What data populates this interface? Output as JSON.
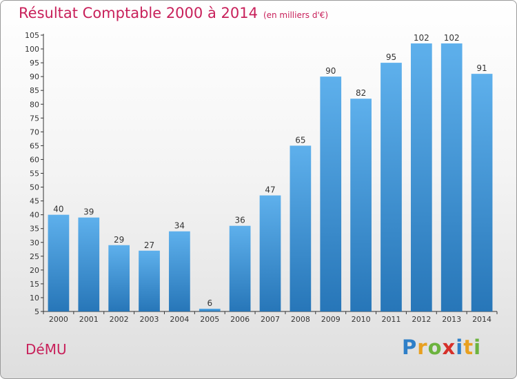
{
  "header": {
    "title": "Résultat Comptable 2000 à 2014",
    "unit": "(en milliers d'€)"
  },
  "commune": "DéMU",
  "logo": {
    "text": "Proxiti",
    "letters": [
      {
        "ch": "P",
        "color": "#2e7fc8"
      },
      {
        "ch": "r",
        "color": "#e8a020"
      },
      {
        "ch": "o",
        "color": "#6cb33e"
      },
      {
        "ch": "x",
        "color": "#d6302a"
      },
      {
        "ch": "i",
        "color": "#2e7fc8"
      },
      {
        "ch": "t",
        "color": "#e8a020"
      },
      {
        "ch": "i",
        "color": "#6cb33e"
      }
    ]
  },
  "colors": {
    "bar_light": "#5eb0ec",
    "bar_dark": "#2776b8",
    "title": "#c8205a"
  },
  "chart_data": {
    "type": "bar",
    "title": "Résultat Comptable 2000 à 2014",
    "subtitle": "(en milliers d'€)",
    "categories": [
      "2000",
      "2001",
      "2002",
      "2003",
      "2004",
      "2005",
      "2006",
      "2007",
      "2008",
      "2009",
      "2010",
      "2011",
      "2012",
      "2013",
      "2014"
    ],
    "values": [
      40,
      39,
      29,
      27,
      34,
      6,
      36,
      47,
      65,
      90,
      82,
      95,
      102,
      102,
      91
    ],
    "data_labels": [
      "40",
      "39",
      "29",
      "27",
      "34",
      "6",
      "36",
      "47",
      "65",
      "90",
      "82",
      "95",
      "102",
      "102",
      "91"
    ],
    "ylim": [
      5,
      105
    ],
    "yticks": [
      5,
      10,
      15,
      20,
      25,
      30,
      35,
      40,
      45,
      50,
      55,
      60,
      65,
      70,
      75,
      80,
      85,
      90,
      95,
      100,
      105
    ],
    "grid": false,
    "legend": "none"
  }
}
